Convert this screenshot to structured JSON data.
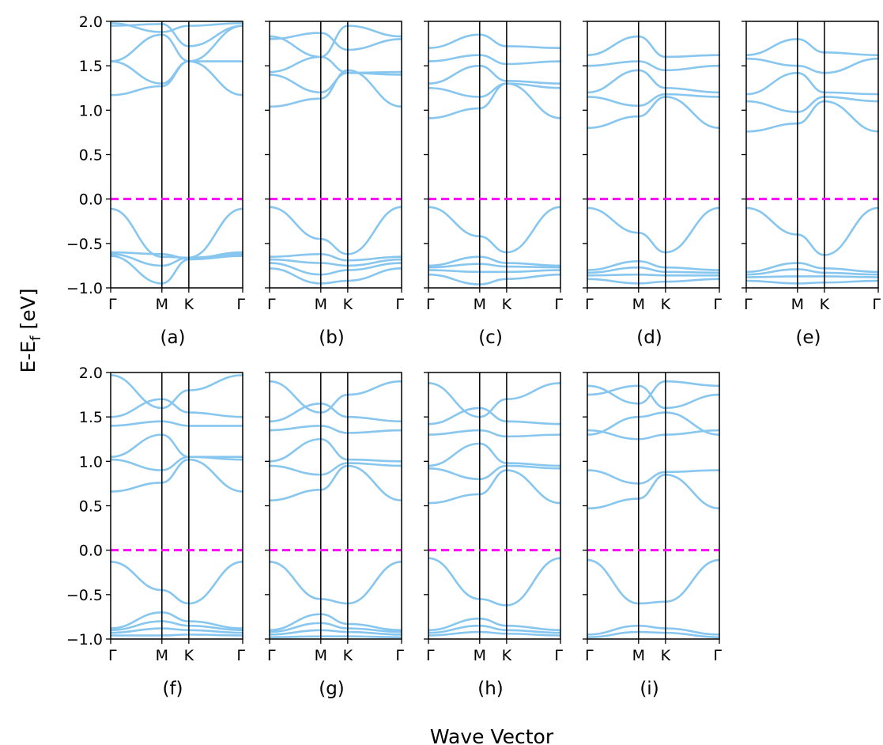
{
  "chart_data": {
    "type": "line",
    "xlabel": "Wave Vector",
    "ylabel": "E-E",
    "ylabel_subscript": "f",
    "ylabel_unit": " [eV]",
    "ylim": [
      -1.0,
      2.0
    ],
    "yticks": [
      -1.0,
      -0.5,
      0.0,
      0.5,
      1.0,
      1.5,
      2.0
    ],
    "ytick_labels": [
      "−1.0",
      "−0.5",
      "0.0",
      "0.5",
      "1.0",
      "1.5",
      "2.0"
    ],
    "kpoint_labels": [
      "Γ",
      "M",
      "K",
      "Γ"
    ],
    "fermi_level": 0.0,
    "colors": {
      "bands": "#87c6ee",
      "fermi": "#ff00ff",
      "axes": "#000000"
    },
    "grid": false,
    "panels": [
      {
        "label": "(a)",
        "vbm": -0.11,
        "cbm": 1.17,
        "series": [
          {
            "values": [
              -0.11,
              -0.65,
              -0.66,
              -0.11
            ]
          },
          {
            "values": [
              -0.6,
              -0.62,
              -0.67,
              -0.6
            ]
          },
          {
            "values": [
              -0.62,
              -0.75,
              -0.66,
              -0.62
            ]
          },
          {
            "values": [
              -0.64,
              -0.95,
              -0.68,
              -0.64
            ]
          },
          {
            "values": [
              1.17,
              1.27,
              1.55,
              1.17
            ]
          },
          {
            "values": [
              1.55,
              1.3,
              1.55,
              1.55
            ]
          },
          {
            "values": [
              1.55,
              1.85,
              1.55,
              1.95
            ]
          },
          {
            "values": [
              1.95,
              1.97,
              1.72,
              1.95
            ]
          },
          {
            "values": [
              1.98,
              1.88,
              1.95,
              1.98
            ]
          }
        ]
      },
      {
        "label": "(b)",
        "vbm": -0.09,
        "cbm": 1.04,
        "series": [
          {
            "values": [
              -0.09,
              -0.45,
              -0.62,
              -0.09
            ]
          },
          {
            "values": [
              -0.65,
              -0.62,
              -0.69,
              -0.65
            ]
          },
          {
            "values": [
              -0.68,
              -0.72,
              -0.75,
              -0.68
            ]
          },
          {
            "values": [
              -0.72,
              -0.85,
              -0.8,
              -0.72
            ]
          },
          {
            "values": [
              -0.78,
              -0.95,
              -0.92,
              -0.78
            ]
          },
          {
            "values": [
              1.04,
              1.13,
              1.45,
              1.04
            ]
          },
          {
            "values": [
              1.4,
              1.2,
              1.42,
              1.4
            ]
          },
          {
            "values": [
              1.43,
              1.6,
              1.42,
              1.43
            ]
          },
          {
            "values": [
              1.8,
              1.87,
              1.68,
              1.8
            ]
          },
          {
            "values": [
              1.83,
              1.6,
              1.95,
              1.83
            ]
          }
        ]
      },
      {
        "label": "(c)",
        "vbm": -0.09,
        "cbm": 0.91,
        "series": [
          {
            "values": [
              -0.09,
              -0.42,
              -0.6,
              -0.09
            ]
          },
          {
            "values": [
              -0.75,
              -0.65,
              -0.72,
              -0.75
            ]
          },
          {
            "values": [
              -0.77,
              -0.73,
              -0.76,
              -0.77
            ]
          },
          {
            "values": [
              -0.8,
              -0.82,
              -0.82,
              -0.8
            ]
          },
          {
            "values": [
              -0.85,
              -0.96,
              -0.9,
              -0.85
            ]
          },
          {
            "values": [
              0.91,
              1.02,
              1.3,
              0.91
            ]
          },
          {
            "values": [
              1.25,
              1.15,
              1.3,
              1.25
            ]
          },
          {
            "values": [
              1.3,
              1.5,
              1.33,
              1.3
            ]
          },
          {
            "values": [
              1.55,
              1.62,
              1.52,
              1.55
            ]
          },
          {
            "values": [
              1.7,
              1.85,
              1.72,
              1.7
            ]
          }
        ]
      },
      {
        "label": "(d)",
        "vbm": -0.1,
        "cbm": 0.8,
        "series": [
          {
            "values": [
              -0.1,
              -0.38,
              -0.6,
              -0.1
            ]
          },
          {
            "values": [
              -0.8,
              -0.7,
              -0.77,
              -0.8
            ]
          },
          {
            "values": [
              -0.83,
              -0.77,
              -0.82,
              -0.83
            ]
          },
          {
            "values": [
              -0.86,
              -0.85,
              -0.86,
              -0.86
            ]
          },
          {
            "values": [
              -0.9,
              -0.95,
              -0.93,
              -0.9
            ]
          },
          {
            "values": [
              0.8,
              0.93,
              1.15,
              0.8
            ]
          },
          {
            "values": [
              1.15,
              1.05,
              1.18,
              1.15
            ]
          },
          {
            "values": [
              1.2,
              1.45,
              1.25,
              1.2
            ]
          },
          {
            "values": [
              1.5,
              1.55,
              1.45,
              1.5
            ]
          },
          {
            "values": [
              1.62,
              1.83,
              1.6,
              1.62
            ]
          }
        ]
      },
      {
        "label": "(e)",
        "vbm": -0.1,
        "cbm": 0.76,
        "series": [
          {
            "values": [
              -0.1,
              -0.4,
              -0.63,
              -0.1
            ]
          },
          {
            "values": [
              -0.82,
              -0.72,
              -0.78,
              -0.82
            ]
          },
          {
            "values": [
              -0.85,
              -0.79,
              -0.83,
              -0.85
            ]
          },
          {
            "values": [
              -0.88,
              -0.87,
              -0.87,
              -0.88
            ]
          },
          {
            "values": [
              -0.92,
              -0.95,
              -0.94,
              -0.92
            ]
          },
          {
            "values": [
              0.76,
              0.85,
              1.1,
              0.76
            ]
          },
          {
            "values": [
              1.1,
              0.98,
              1.15,
              1.1
            ]
          },
          {
            "values": [
              1.18,
              1.42,
              1.2,
              1.18
            ]
          },
          {
            "values": [
              1.58,
              1.5,
              1.42,
              1.58
            ]
          },
          {
            "values": [
              1.62,
              1.8,
              1.65,
              1.62
            ]
          }
        ]
      },
      {
        "label": "(f)",
        "vbm": -0.13,
        "cbm": 0.66,
        "series": [
          {
            "values": [
              -0.13,
              -0.45,
              -0.6,
              -0.13
            ]
          },
          {
            "values": [
              -0.88,
              -0.7,
              -0.8,
              -0.88
            ]
          },
          {
            "values": [
              -0.9,
              -0.8,
              -0.85,
              -0.9
            ]
          },
          {
            "values": [
              -0.93,
              -0.88,
              -0.9,
              -0.93
            ]
          },
          {
            "values": [
              -0.96,
              -0.96,
              -0.95,
              -0.96
            ]
          },
          {
            "values": [
              0.66,
              0.76,
              1.02,
              0.66
            ]
          },
          {
            "values": [
              1.02,
              0.9,
              1.05,
              1.02
            ]
          },
          {
            "values": [
              1.05,
              1.3,
              1.05,
              1.05
            ]
          },
          {
            "values": [
              1.4,
              1.45,
              1.4,
              1.4
            ]
          },
          {
            "values": [
              1.5,
              1.7,
              1.55,
              1.5
            ]
          },
          {
            "values": [
              1.97,
              1.6,
              1.8,
              1.97
            ]
          }
        ]
      },
      {
        "label": "(g)",
        "vbm": -0.13,
        "cbm": 0.56,
        "series": [
          {
            "values": [
              -0.13,
              -0.55,
              -0.6,
              -0.13
            ]
          },
          {
            "values": [
              -0.9,
              -0.72,
              -0.83,
              -0.9
            ]
          },
          {
            "values": [
              -0.92,
              -0.82,
              -0.88,
              -0.92
            ]
          },
          {
            "values": [
              -0.95,
              -0.9,
              -0.92,
              -0.95
            ]
          },
          {
            "values": [
              -0.98,
              -0.97,
              -0.97,
              -0.98
            ]
          },
          {
            "values": [
              0.56,
              0.68,
              0.95,
              0.56
            ]
          },
          {
            "values": [
              0.95,
              0.85,
              0.98,
              0.95
            ]
          },
          {
            "values": [
              1.0,
              1.25,
              1.02,
              1.0
            ]
          },
          {
            "values": [
              1.35,
              1.4,
              1.32,
              1.35
            ]
          },
          {
            "values": [
              1.45,
              1.65,
              1.5,
              1.45
            ]
          },
          {
            "values": [
              1.9,
              1.55,
              1.75,
              1.9
            ]
          }
        ]
      },
      {
        "label": "(h)",
        "vbm": -0.09,
        "cbm": 0.53,
        "series": [
          {
            "values": [
              -0.09,
              -0.55,
              -0.62,
              -0.09
            ]
          },
          {
            "values": [
              -0.9,
              -0.77,
              -0.85,
              -0.9
            ]
          },
          {
            "values": [
              -0.93,
              -0.85,
              -0.9,
              -0.93
            ]
          },
          {
            "values": [
              -0.96,
              -0.92,
              -0.94,
              -0.96
            ]
          },
          {
            "values": [
              0.53,
              0.63,
              0.9,
              0.53
            ]
          },
          {
            "values": [
              0.92,
              0.8,
              0.95,
              0.92
            ]
          },
          {
            "values": [
              0.95,
              1.2,
              0.98,
              0.95
            ]
          },
          {
            "values": [
              1.3,
              1.35,
              1.28,
              1.3
            ]
          },
          {
            "values": [
              1.42,
              1.6,
              1.45,
              1.42
            ]
          },
          {
            "values": [
              1.88,
              1.5,
              1.7,
              1.88
            ]
          }
        ]
      },
      {
        "label": "(i)",
        "vbm": -0.11,
        "cbm": 0.47,
        "series": [
          {
            "values": [
              -0.11,
              -0.6,
              -0.58,
              -0.11
            ]
          },
          {
            "values": [
              -0.95,
              -0.85,
              -0.88,
              -0.95
            ]
          },
          {
            "values": [
              -0.98,
              -0.92,
              -0.93,
              -0.98
            ]
          },
          {
            "values": [
              0.47,
              0.58,
              0.85,
              0.47
            ]
          },
          {
            "values": [
              0.9,
              0.75,
              0.88,
              0.9
            ]
          },
          {
            "values": [
              1.3,
              1.5,
              1.55,
              1.3
            ]
          },
          {
            "values": [
              1.35,
              1.25,
              1.3,
              1.35
            ]
          },
          {
            "values": [
              1.75,
              1.85,
              1.6,
              1.75
            ]
          },
          {
            "values": [
              1.85,
              1.65,
              1.9,
              1.85
            ]
          }
        ]
      }
    ]
  }
}
